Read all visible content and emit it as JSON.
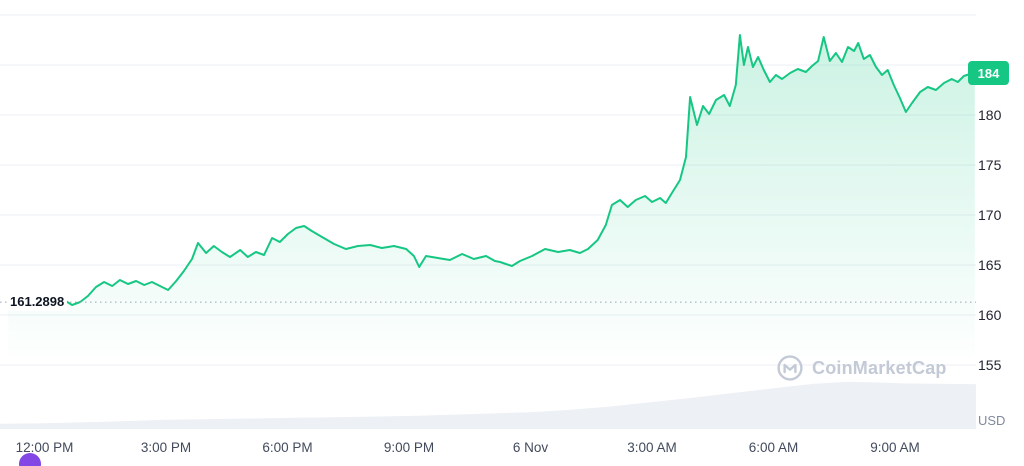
{
  "chart_data": {
    "type": "line",
    "title": "",
    "y_axis_unit": "USD",
    "current_price_label": "184",
    "current_price_value": 184.2,
    "baseline_label": "161.2898",
    "baseline_value": 161.2898,
    "x_tick_labels": [
      "12:00 PM",
      "3:00 PM",
      "6:00 PM",
      "9:00 PM",
      "6 Nov",
      "3:00 AM",
      "6:00 AM",
      "9:00 AM"
    ],
    "x_tick_hours": [
      0,
      3,
      6,
      9,
      12,
      15,
      18,
      21
    ],
    "y_ticks": [
      180,
      175,
      170,
      165,
      160,
      155
    ],
    "grid_ticks": [
      190,
      185,
      180,
      175,
      170,
      165,
      160,
      155
    ],
    "xlim": [
      -1.1,
      23.0
    ],
    "ylim": [
      148.5,
      191.5
    ],
    "grid": true,
    "legend": "none",
    "colors": {
      "line": "#16C784",
      "area": "#16C784",
      "grid": "#ECEFF4",
      "volume": "#EDF0F4",
      "baseline": "#9AA4B8",
      "badge_bg": "#16C784",
      "badge_text": "#FFFFFF"
    },
    "series": [
      {
        "name": "Price (USD)",
        "x": [
          -0.9,
          -0.61,
          -0.31,
          -0.01,
          0.28,
          0.48,
          0.68,
          0.88,
          1.07,
          1.27,
          1.47,
          1.67,
          1.86,
          2.06,
          2.26,
          2.46,
          2.65,
          2.85,
          3.05,
          3.25,
          3.44,
          3.64,
          3.79,
          3.99,
          4.18,
          4.38,
          4.58,
          4.83,
          5.02,
          5.22,
          5.42,
          5.62,
          5.81,
          6.01,
          6.21,
          6.41,
          6.6,
          6.85,
          7.15,
          7.44,
          7.74,
          8.04,
          8.33,
          8.63,
          8.93,
          9.12,
          9.25,
          9.42,
          9.71,
          10.01,
          10.31,
          10.6,
          10.9,
          11.12,
          11.25,
          11.54,
          11.74,
          12.04,
          12.36,
          12.68,
          12.97,
          13.22,
          13.42,
          13.66,
          13.86,
          14.01,
          14.21,
          14.4,
          14.6,
          14.83,
          15.0,
          15.2,
          15.34,
          15.49,
          15.69,
          15.84,
          15.94,
          16.11,
          16.26,
          16.41,
          16.58,
          16.78,
          16.92,
          17.07,
          17.17,
          17.27,
          17.37,
          17.49,
          17.62,
          17.76,
          17.91,
          18.06,
          18.21,
          18.41,
          18.6,
          18.8,
          18.95,
          19.1,
          19.24,
          19.39,
          19.54,
          19.69,
          19.84,
          19.99,
          20.09,
          20.23,
          20.38,
          20.53,
          20.68,
          20.82,
          20.97,
          21.12,
          21.27,
          21.42,
          21.62,
          21.81,
          22.01,
          22.21,
          22.4,
          22.55,
          22.7,
          22.85,
          22.97
        ],
        "y": [
          162.0,
          161.6,
          161.2,
          161.7,
          161.1,
          161.5,
          161.0,
          161.3,
          161.9,
          162.8,
          163.3,
          162.9,
          163.5,
          163.1,
          163.4,
          163.0,
          163.3,
          162.9,
          162.5,
          163.4,
          164.4,
          165.6,
          167.2,
          166.2,
          166.9,
          166.3,
          165.8,
          166.5,
          165.8,
          166.3,
          166.0,
          167.7,
          167.3,
          168.1,
          168.7,
          168.9,
          168.4,
          167.8,
          167.1,
          166.6,
          166.9,
          167.0,
          166.7,
          166.9,
          166.6,
          165.9,
          164.8,
          165.9,
          165.7,
          165.5,
          166.1,
          165.6,
          165.9,
          165.4,
          165.3,
          164.9,
          165.4,
          165.9,
          166.6,
          166.3,
          166.5,
          166.2,
          166.6,
          167.5,
          169.0,
          171.0,
          171.5,
          170.8,
          171.5,
          171.9,
          171.3,
          171.7,
          171.2,
          172.2,
          173.5,
          175.8,
          181.8,
          179.0,
          180.9,
          180.1,
          181.5,
          182.0,
          180.9,
          183.0,
          188.0,
          185.0,
          186.8,
          184.8,
          185.8,
          184.5,
          183.3,
          184.0,
          183.6,
          184.2,
          184.6,
          184.3,
          184.9,
          185.4,
          187.8,
          185.4,
          186.2,
          185.3,
          186.8,
          186.4,
          187.2,
          185.6,
          186.0,
          184.8,
          184.0,
          184.5,
          183.0,
          181.7,
          180.3,
          181.2,
          182.3,
          182.8,
          182.5,
          183.2,
          183.6,
          183.3,
          183.9,
          184.1,
          184.2
        ]
      }
    ],
    "volume_profile": {
      "x": [
        -1.1,
        0,
        1.5,
        3,
        4.5,
        6,
        7.5,
        9,
        10.5,
        12,
        13,
        14,
        15,
        16,
        17,
        18,
        19,
        19.8,
        20.5,
        21.2,
        22,
        23
      ],
      "v": [
        9,
        10,
        13,
        17,
        19,
        21,
        23,
        25,
        29,
        33,
        38,
        45,
        54,
        63,
        73,
        83,
        92,
        96,
        95,
        93,
        92,
        91
      ]
    }
  },
  "watermark": {
    "text": "CoinMarketCap"
  }
}
